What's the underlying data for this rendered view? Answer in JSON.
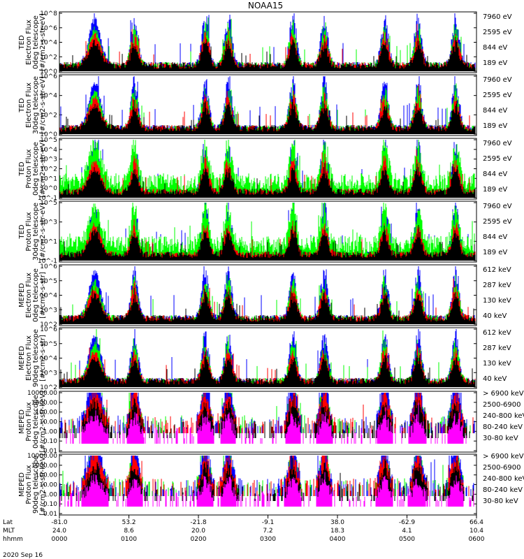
{
  "title": "NOAA15",
  "date_label": "2020 Sep 16",
  "footer": {
    "row_labels": [
      "Lat",
      "MLT",
      "hhmm"
    ],
    "lat": [
      "-81.0",
      "53.2",
      "-21.8",
      "-9.1",
      "38.0",
      "-62.9",
      "66.4"
    ],
    "mlt": [
      "24.0",
      "8.6",
      "20.0",
      "7.2",
      "18.3",
      "4.1",
      "10.4"
    ],
    "hhmm": [
      "0000",
      "0100",
      "0200",
      "0300",
      "0400",
      "0500",
      "0600"
    ]
  },
  "panel_ylabels": [
    [
      "TED",
      "Electron Flux",
      "0deg telescope",
      "[#/cm2-s-str-eV]"
    ],
    [
      "TED",
      "Electron Flux",
      "30deg telescope",
      "[#/cm2-s-str-eV]"
    ],
    [
      "TED",
      "Proton Flux",
      "0deg telescope",
      "[#/cm2-s-str-eV]"
    ],
    [
      "TED",
      "Proton Flux",
      "30deg telescope",
      "[#/cm2-s-str-eV]"
    ],
    [
      "MEPED",
      "Electron Flux",
      "0deg telescope",
      "[#/cm2-s-str]"
    ],
    [
      "MEPED",
      "Electron Flux",
      "90deg telescope",
      "[#/cm2-s-str]"
    ],
    [
      "MEPED",
      "Proton Flux",
      "0deg telescope",
      "[#/cm2-s-str-keV]"
    ],
    [
      "MEPED",
      "Proton Flux",
      "90deg telescope",
      "[#/cm2-s-str-keV]"
    ]
  ],
  "colors": {
    "black": "#000000",
    "red": "#ff0000",
    "green": "#00ff00",
    "blue": "#0000ff",
    "magenta": "#ff00ff"
  },
  "chart_data": [
    {
      "type": "line",
      "ylabel": "TED Electron Flux 0deg telescope [#/cm2-s-str-eV]",
      "yscale": "log",
      "ytick_labels": [
        "10^0",
        "10^2",
        "10^4",
        "10^6",
        "10^8"
      ],
      "series": [
        {
          "name": "7960 eV",
          "color": "black"
        },
        {
          "name": "2595 eV",
          "color": "red"
        },
        {
          "name": "844 eV",
          "color": "green"
        },
        {
          "name": "189 eV",
          "color": "blue"
        }
      ]
    },
    {
      "type": "line",
      "ylabel": "TED Electron Flux 30deg telescope [#/cm2-s-str-eV]",
      "yscale": "log",
      "ytick_labels": [
        "10^0",
        "10^2",
        "10^4",
        "10^6"
      ],
      "series": [
        {
          "name": "7960 eV",
          "color": "black"
        },
        {
          "name": "2595 eV",
          "color": "red"
        },
        {
          "name": "844 eV",
          "color": "green"
        },
        {
          "name": "189 eV",
          "color": "blue"
        }
      ]
    },
    {
      "type": "line",
      "ylabel": "TED Proton Flux 0deg telescope [#/cm2-s-str-eV]",
      "yscale": "log",
      "ytick_labels": [
        "10^-1",
        "10^0",
        "10^1",
        "10^2",
        "10^3",
        "10^4",
        "10^5"
      ],
      "series": [
        {
          "name": "7960 eV",
          "color": "black"
        },
        {
          "name": "2595 eV",
          "color": "red"
        },
        {
          "name": "844 eV",
          "color": "green"
        },
        {
          "name": "189 eV",
          "color": "blue"
        }
      ]
    },
    {
      "type": "line",
      "ylabel": "TED Proton Flux 30deg telescope [#/cm2-s-str-eV]",
      "yscale": "log",
      "ytick_labels": [
        "10^-1",
        "10^1",
        "10^3",
        "10^5"
      ],
      "series": [
        {
          "name": "7960 eV",
          "color": "black"
        },
        {
          "name": "2595 eV",
          "color": "red"
        },
        {
          "name": "844 eV",
          "color": "green"
        },
        {
          "name": "189 eV",
          "color": "blue"
        }
      ]
    },
    {
      "type": "line",
      "ylabel": "MEPED Electron Flux 0deg telescope [#/cm2-s-str]",
      "yscale": "log",
      "ytick_labels": [
        "10^2",
        "10^3",
        "10^4",
        "10^5",
        "10^6"
      ],
      "series": [
        {
          "name": "612 keV",
          "color": "black"
        },
        {
          "name": "287 keV",
          "color": "red"
        },
        {
          "name": "130 keV",
          "color": "green"
        },
        {
          "name": "40 keV",
          "color": "blue"
        }
      ]
    },
    {
      "type": "line",
      "ylabel": "MEPED Electron Flux 90deg telescope [#/cm2-s-str]",
      "yscale": "log",
      "ytick_labels": [
        "10^2",
        "10^3",
        "10^4",
        "10^5",
        "10^6"
      ],
      "series": [
        {
          "name": "612 keV",
          "color": "black"
        },
        {
          "name": "287 keV",
          "color": "red"
        },
        {
          "name": "130 keV",
          "color": "green"
        },
        {
          "name": "40 keV",
          "color": "blue"
        }
      ]
    },
    {
      "type": "line",
      "ylabel": "MEPED Proton Flux 0deg telescope [#/cm2-s-str-keV]",
      "yscale": "log",
      "ytick_labels": [
        "0.01",
        "0.10",
        "1.00",
        "10.00",
        "100.00",
        "1000.00",
        "10000.00"
      ],
      "series": [
        {
          "name": "> 6900 keV",
          "color": "magenta"
        },
        {
          "name": "2500-6900",
          "color": "black"
        },
        {
          "name": "240-800 keV",
          "color": "red"
        },
        {
          "name": "80-240 keV",
          "color": "green"
        },
        {
          "name": "30-80 keV",
          "color": "blue"
        }
      ]
    },
    {
      "type": "line",
      "ylabel": "MEPED Proton Flux 90deg telescope [#/cm2-s-str-keV]",
      "yscale": "log",
      "ytick_labels": [
        "0.01",
        "0.10",
        "1.00",
        "10.00",
        "100.00",
        "1000.00",
        "10000.00"
      ],
      "series": [
        {
          "name": "> 6900 keV",
          "color": "magenta"
        },
        {
          "name": "2500-6900",
          "color": "black"
        },
        {
          "name": "240-800 keV",
          "color": "red"
        },
        {
          "name": "80-240 keV",
          "color": "green"
        },
        {
          "name": "30-80 keV",
          "color": "blue"
        }
      ]
    }
  ]
}
